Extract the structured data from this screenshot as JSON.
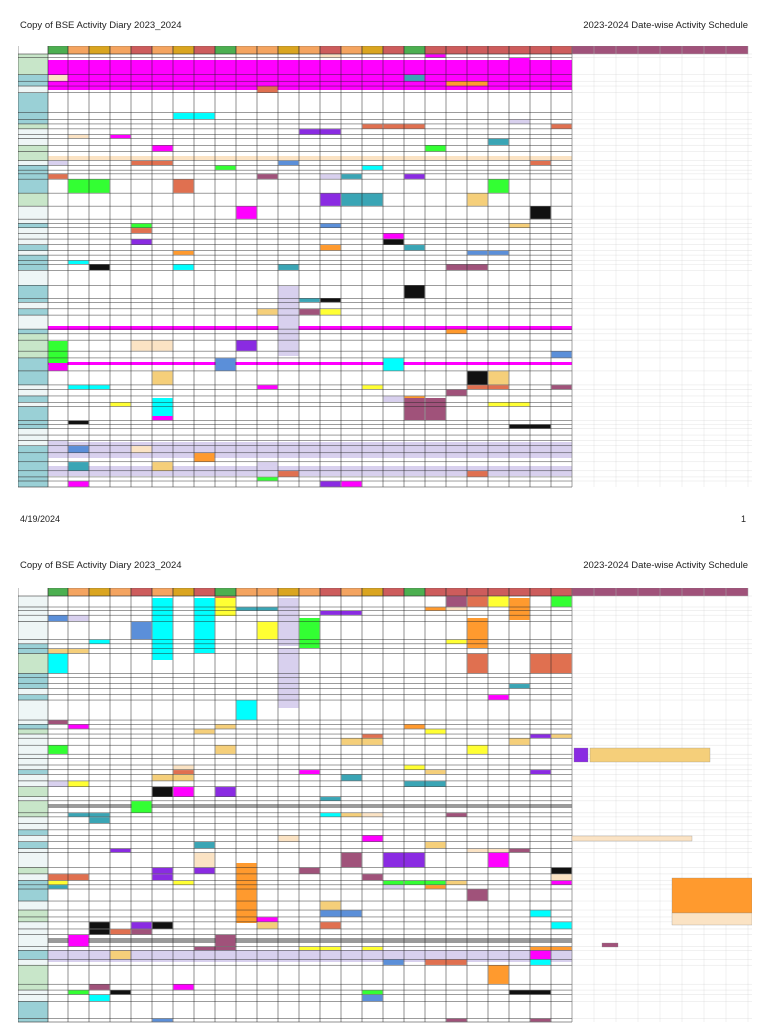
{
  "document": {
    "title": "Copy of BSE Activity Diary 2023_2024",
    "schedule_title": "2023-2024 Date-wise Activity Schedule",
    "print_date": "4/19/2024",
    "page_number": "1"
  },
  "pages": [
    {
      "id": "page1",
      "has_footer": true
    },
    {
      "id": "page2",
      "has_footer": false
    }
  ],
  "palette": {
    "header_green": "#4caf50",
    "header_orange": "#f4a460",
    "header_gold": "#daa520",
    "header_red": "#cd5c5c",
    "header_mauve": "#a0527a",
    "magenta": "#ff00ff",
    "cyan": "#00ffff",
    "salmon": "#e07050",
    "orange": "#ff9a2e",
    "yellow": "#ffff33",
    "green": "#33ff33",
    "lavender": "#d8d0ee",
    "plum": "#a0527a",
    "blue": "#5b8fd9",
    "teal": "#3aa5b5",
    "light_teal": "#9ad0d6",
    "peach": "#fbe3c4",
    "gold_light": "#f5cf7a",
    "grey": "#9a9a9a",
    "black": "#111111",
    "purple": "#8a2be2"
  }
}
